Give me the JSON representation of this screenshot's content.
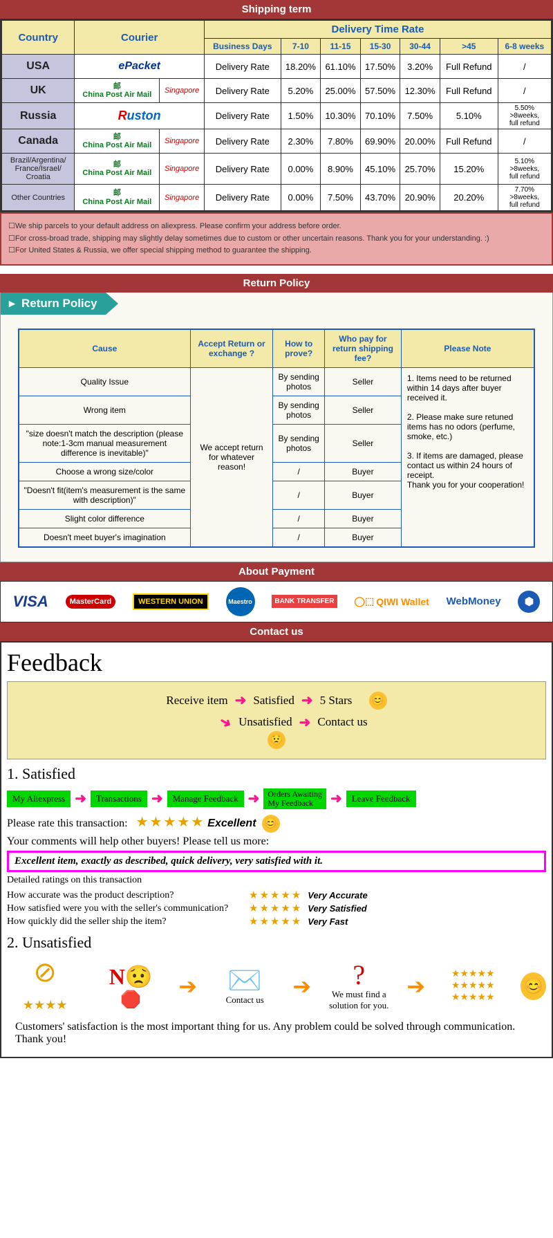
{
  "shipping": {
    "title": "Shipping term",
    "headers": {
      "country": "Country",
      "courier": "Courier",
      "delivery_rate_header": "Delivery Time Rate",
      "cols": [
        "Business Days",
        "7-10",
        "11-15",
        "15-30",
        "30-44",
        ">45",
        "6-8 weeks"
      ]
    },
    "rows": [
      {
        "country": "USA",
        "courier_type": "epacket",
        "dr": "Delivery Rate",
        "vals": [
          "18.20%",
          "61.10%",
          "17.50%",
          "3.20%",
          "Full Refund",
          "/"
        ]
      },
      {
        "country": "UK",
        "courier_type": "cpsp",
        "dr": "Delivery Rate",
        "vals": [
          "5.20%",
          "25.00%",
          "57.50%",
          "12.30%",
          "Full Refund",
          "/"
        ]
      },
      {
        "country": "Russia",
        "courier_type": "ruston",
        "dr": "Delivery Rate",
        "vals": [
          "1.50%",
          "10.30%",
          "70.10%",
          "7.50%",
          "5.10%",
          "5.50%\n>8weeks,\nfull refund"
        ]
      },
      {
        "country": "Canada",
        "courier_type": "cpsp",
        "dr": "Delivery Rate",
        "vals": [
          "2.30%",
          "7.80%",
          "69.90%",
          "20.00%",
          "Full Refund",
          "/"
        ]
      },
      {
        "country": "Brazil/Argentina/\nFrance/Israel/\nCroatia",
        "small": true,
        "courier_type": "cpsp",
        "dr": "Delivery Rate",
        "vals": [
          "0.00%",
          "8.90%",
          "45.10%",
          "25.70%",
          "15.20%",
          "5.10%\n>8weeks,\nfull refund"
        ]
      },
      {
        "country": "Other Countries",
        "small": true,
        "courier_type": "cpsp",
        "dr": "Delivery Rate",
        "vals": [
          "0.00%",
          "7.50%",
          "43.70%",
          "20.90%",
          "20.20%",
          "7.70%\n>8weeks,\nfull refund"
        ]
      }
    ],
    "notes": [
      "☐We ship parcels to your default address on aliexpress. Please confirm your address before order.",
      "☐For cross-broad trade, shipping may slightly delay sometimes due to custom or other uncertain reasons. Thank you for your understanding. :)",
      "☐For United States & Russia, we offer special shipping method to guarantee the shipping."
    ],
    "courier_labels": {
      "china_post": "China Post Air Mail",
      "singapore": "Singapore",
      "epacket": "ePacket"
    }
  },
  "return": {
    "title": "Return Policy",
    "banner": "Return Policy",
    "headers": [
      "Cause",
      "Accept Return or exchange ?",
      "How to prove?",
      "Who pay for return shipping fee?",
      "Please Note"
    ],
    "accept_text": "We accept return for whatever reason!",
    "rows": [
      {
        "cause": "Quality Issue",
        "prove": "By sending photos",
        "pay": "Seller"
      },
      {
        "cause": "Wrong item",
        "prove": "By sending photos",
        "pay": "Seller"
      },
      {
        "cause": "\"size doesn't match the description (please note:1-3cm manual measurement difference is inevitable)\"",
        "prove": "By sending photos",
        "pay": "Seller"
      },
      {
        "cause": "Choose a wrong size/color",
        "prove": "/",
        "pay": "Buyer"
      },
      {
        "cause": "\"Doesn't fit(item's measurement is the same with description)\"",
        "prove": "/",
        "pay": "Buyer"
      },
      {
        "cause": "Slight color difference",
        "prove": "/",
        "pay": "Buyer"
      },
      {
        "cause": "Doesn't meet buyer's imagination",
        "prove": "/",
        "pay": "Buyer"
      }
    ],
    "note": "1. Items need to be returned within 14 days after buyer received it.\n\n2. Please make sure retuned items has no odors (perfume, smoke, etc.)\n\n3. If items are damaged, please contact us within 24 hours of receipt.\nThank you for your cooperation!"
  },
  "payment": {
    "title": "About Payment",
    "logos": {
      "visa": "VISA",
      "mc": "MasterCard",
      "wu": "WESTERN UNION",
      "maestro": "Maestro",
      "bank": "BANK TRANSFER",
      "qiwi": "QIWI Wallet",
      "webmoney": "WebMoney"
    }
  },
  "contact": {
    "title": "Contact us",
    "feedback_title": "Feedback",
    "flow": {
      "receive": "Receive item",
      "satisfied": "Satisfied",
      "five": "5 Stars",
      "unsat": "Unsatisfied",
      "contact": "Contact us"
    },
    "satisfied_title": "1. Satisfied",
    "steps": [
      "My Aliexpress",
      "Transactions",
      "Manage Feedback",
      "Orders Awaiting\nMy Feedback",
      "Leave Feedback"
    ],
    "rate_label": "Please rate this transaction:",
    "excellent": "Excellent",
    "comments_label": "Your comments will help other buyers! Please tell us more:",
    "comment_text": "Excellent item, exactly as described, quick delivery, very satisfied with it.",
    "detailed_title": "Detailed ratings on this transaction",
    "detailed": [
      {
        "q": "How accurate was the product description?",
        "l": "Very Accurate"
      },
      {
        "q": "How satisfied were you with the seller's communication?",
        "l": "Very Satisfied"
      },
      {
        "q": "How quickly did the seller ship the item?",
        "l": "Very Fast"
      }
    ],
    "unsat_title": "2. Unsatisfied",
    "unsat_steps": {
      "no": "N",
      "contact": "Contact us",
      "solution": "We must find a solution for you."
    },
    "closing": "Customers' satisfaction is the most important thing for us. Any problem could be solved through communication. Thank you!"
  },
  "colors": {
    "header_bg": "#a33636",
    "yellow_bg": "#f3e9a8",
    "blue_text": "#1b5bb5",
    "notes_bg": "#e9a9a9",
    "teal": "#2aa09a",
    "green": "#00d600",
    "magenta": "#ff00ff",
    "pink_arrow": "#ff1493",
    "star": "#e8a000"
  }
}
